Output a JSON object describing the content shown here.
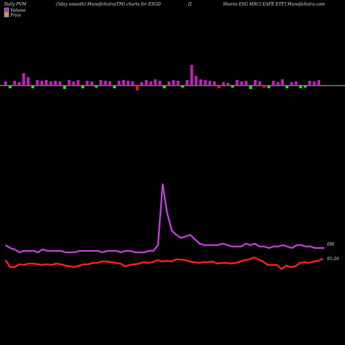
{
  "header": {
    "part1": "Daily PVM",
    "part2": "(5day smooth) MunafaSutra(TM) charts for ESGD",
    "part3": "[I",
    "part4": "Shares ESG MSCI EAFE ETF] MunafaSutra.com"
  },
  "legend": [
    {
      "label": "Volume",
      "color": "#d020c0"
    },
    {
      "label": "Price",
      "color": "#ff8040"
    }
  ],
  "colors": {
    "background": "#000000",
    "volume_line": "#cc33cc",
    "price_line": "#ff2020",
    "bar_up": "#c020c0",
    "bar_down_green": "#30e030",
    "bar_down_red": "#ff1010"
  },
  "chart_data": {
    "type": "line",
    "volume_label": "0M",
    "price_label": "95.26",
    "volume_series": [
      8,
      6,
      5,
      3,
      4,
      4,
      4,
      3,
      5,
      4,
      4,
      4,
      4,
      3,
      3,
      3,
      4,
      4,
      4,
      4,
      4,
      3,
      4,
      4,
      4,
      3,
      4,
      4,
      3,
      3,
      3,
      4,
      4,
      8,
      50,
      30,
      18,
      15,
      13,
      14,
      15,
      12,
      9,
      8,
      8,
      8,
      8,
      9,
      8,
      7,
      7,
      7,
      9,
      8,
      9,
      7,
      7,
      6,
      7,
      7,
      8,
      7,
      6,
      8,
      8,
      7,
      7,
      6,
      6,
      6
    ],
    "price_series": [
      4,
      4,
      4,
      4,
      4,
      4,
      4,
      4,
      4,
      4,
      4,
      4,
      4,
      4,
      4,
      4,
      4,
      4,
      4,
      4,
      4,
      4,
      4,
      4,
      4,
      4,
      4,
      4,
      4,
      4,
      4,
      4,
      4,
      4,
      4,
      4,
      4,
      4,
      4,
      4,
      4,
      4,
      4,
      4,
      4,
      4,
      4,
      4,
      4,
      4,
      4,
      4,
      4,
      4,
      4,
      4,
      4,
      4,
      4,
      4,
      4,
      4,
      4,
      4,
      4,
      4,
      4,
      4,
      4,
      4
    ],
    "bars": [
      {
        "v": 2,
        "c": "up"
      },
      {
        "v": -1,
        "c": "green"
      },
      {
        "v": 2,
        "c": "up"
      },
      {
        "v": 2,
        "c": "up"
      },
      {
        "v": 4,
        "c": "up"
      },
      {
        "v": 4,
        "c": "up"
      },
      {
        "v": 2,
        "c": "up"
      },
      {
        "v": 2,
        "c": "up"
      },
      {
        "v": 2,
        "c": "up"
      },
      {
        "v": 2,
        "c": "up"
      }
    ]
  }
}
